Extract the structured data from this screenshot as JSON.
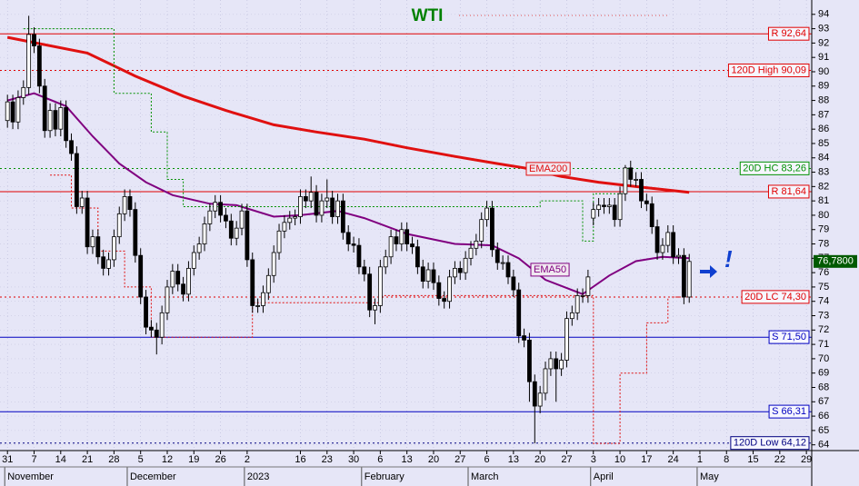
{
  "chart_data": {
    "type": "candlestick",
    "title": "WTI",
    "title_color": "#008000",
    "open": [
      86.6,
      87.9,
      86.5,
      88.2,
      88.9,
      92.6,
      91.8,
      89.0,
      85.9,
      87.3,
      86.0,
      87.5,
      85.2,
      84.3,
      80.6,
      81.2,
      77.8,
      78.5,
      77.1,
      76.3,
      76.9,
      78.5,
      80.1,
      81.3,
      80.4,
      77.2,
      74.3,
      72.2,
      72.0,
      71.5,
      73.2,
      75.0,
      76.1,
      75.2,
      74.5,
      76.3,
      77.4,
      78.0,
      79.4,
      80.3,
      80.9,
      80.0,
      79.6,
      78.4,
      79.1,
      80.3,
      76.9,
      73.7,
      73.7,
      74.6,
      75.8,
      77.4,
      78.9,
      79.5,
      79.8,
      79.9,
      81.3,
      81.0,
      81.6,
      80.0,
      81.0,
      81.2,
      79.9,
      81.0,
      78.8,
      78.0,
      77.9,
      76.4,
      75.9,
      73.4,
      73.7,
      76.4,
      77.1,
      78.5,
      78.0,
      79.0,
      78.0,
      77.8,
      76.4,
      75.4,
      76.2,
      75.3,
      74.2,
      74.0,
      75.7,
      76.3,
      76.0,
      77.0,
      77.7,
      78.2,
      79.7,
      80.5,
      77.6,
      76.7,
      76.7,
      75.7,
      74.8,
      71.6,
      71.3,
      68.4,
      66.7,
      67.6,
      69.3,
      70.0,
      69.3,
      69.9,
      72.8,
      73.2,
      74.4,
      74.4,
      79.8,
      80.4,
      80.7,
      80.6,
      80.7,
      79.7,
      81.5,
      83.3,
      82.5,
      82.5,
      81.0,
      80.8,
      79.2,
      77.4,
      77.9,
      78.8,
      77.1,
      77.2,
      74.3
    ],
    "high": [
      88.4,
      88.4,
      88.7,
      89.4,
      93.9,
      93.1,
      92.3,
      89.5,
      87.8,
      87.8,
      88.0,
      88.0,
      85.7,
      84.8,
      81.7,
      81.7,
      79.0,
      79.0,
      77.6,
      77.4,
      79.0,
      80.6,
      81.8,
      81.8,
      80.9,
      77.7,
      74.8,
      72.7,
      72.5,
      73.7,
      75.5,
      76.6,
      76.6,
      75.7,
      76.8,
      77.9,
      78.5,
      79.9,
      80.8,
      81.4,
      81.4,
      80.5,
      80.1,
      79.6,
      80.8,
      80.8,
      77.4,
      74.2,
      75.1,
      76.3,
      77.9,
      79.4,
      80.0,
      80.3,
      80.4,
      81.8,
      81.8,
      82.7,
      82.1,
      81.5,
      82.5,
      81.7,
      81.5,
      81.5,
      79.3,
      78.5,
      78.4,
      76.9,
      76.4,
      74.2,
      76.9,
      77.6,
      79.0,
      79.0,
      79.5,
      79.5,
      78.5,
      78.3,
      76.9,
      76.7,
      76.7,
      75.8,
      74.7,
      76.2,
      76.8,
      76.8,
      77.5,
      78.2,
      78.7,
      80.2,
      81.0,
      81.0,
      78.1,
      77.2,
      77.2,
      76.2,
      75.3,
      72.1,
      71.8,
      68.9,
      68.1,
      69.8,
      70.5,
      70.5,
      70.4,
      73.3,
      73.7,
      74.9,
      74.9,
      76.2,
      80.9,
      81.2,
      81.2,
      81.2,
      81.2,
      82.0,
      83.5,
      83.8,
      83.0,
      83.0,
      81.5,
      81.3,
      79.7,
      78.4,
      79.3,
      79.3,
      77.7,
      77.7,
      77.3
    ],
    "low": [
      86.1,
      86.0,
      86.0,
      87.7,
      88.4,
      91.3,
      88.5,
      85.4,
      85.4,
      85.5,
      85.5,
      84.7,
      83.8,
      80.1,
      80.1,
      77.3,
      77.3,
      76.6,
      75.8,
      75.8,
      76.4,
      78.0,
      79.6,
      79.9,
      76.7,
      73.8,
      71.7,
      71.5,
      70.3,
      71.0,
      72.7,
      74.5,
      74.7,
      74.0,
      74.0,
      75.8,
      76.9,
      77.5,
      78.9,
      79.8,
      79.5,
      79.1,
      77.9,
      77.9,
      78.6,
      76.4,
      73.2,
      73.2,
      73.2,
      74.1,
      75.3,
      76.9,
      78.4,
      79.0,
      79.3,
      79.4,
      80.5,
      80.5,
      79.5,
      79.5,
      80.5,
      79.4,
      79.4,
      78.3,
      77.5,
      77.4,
      75.9,
      75.4,
      72.9,
      72.4,
      73.2,
      75.9,
      76.6,
      77.5,
      77.5,
      77.5,
      77.3,
      75.9,
      74.9,
      74.9,
      74.8,
      73.7,
      73.5,
      73.5,
      75.2,
      75.5,
      75.5,
      76.5,
      77.2,
      77.7,
      79.2,
      77.1,
      76.2,
      76.2,
      75.2,
      74.3,
      71.1,
      70.8,
      67.0,
      64.1,
      66.2,
      67.1,
      68.8,
      67.0,
      68.8,
      69.4,
      72.3,
      72.7,
      73.9,
      73.9,
      79.3,
      79.9,
      80.1,
      80.1,
      79.2,
      79.2,
      81.0,
      82.0,
      82.0,
      80.5,
      80.3,
      78.7,
      76.9,
      76.9,
      77.4,
      76.6,
      76.6,
      73.8,
      73.9
    ],
    "close": [
      87.9,
      86.5,
      88.2,
      88.9,
      92.6,
      91.8,
      89.0,
      85.9,
      87.3,
      86.0,
      87.5,
      85.2,
      84.3,
      80.6,
      81.2,
      77.8,
      78.5,
      77.1,
      76.3,
      76.9,
      78.5,
      80.1,
      81.3,
      80.4,
      77.2,
      74.3,
      72.2,
      72.0,
      71.5,
      73.2,
      75.0,
      76.1,
      75.2,
      74.5,
      76.3,
      77.4,
      78.0,
      79.4,
      80.3,
      80.9,
      80.0,
      79.6,
      78.4,
      79.1,
      80.3,
      76.9,
      73.7,
      73.7,
      74.6,
      75.8,
      77.4,
      78.9,
      79.5,
      79.8,
      79.9,
      81.3,
      81.0,
      81.6,
      80.0,
      81.0,
      81.2,
      79.9,
      81.0,
      78.8,
      78.0,
      77.9,
      76.4,
      75.9,
      73.4,
      73.7,
      76.4,
      77.1,
      78.5,
      78.0,
      79.0,
      78.0,
      77.8,
      76.4,
      75.4,
      76.2,
      75.3,
      74.2,
      74.0,
      75.7,
      76.3,
      76.0,
      77.0,
      77.7,
      78.2,
      79.7,
      80.5,
      77.6,
      76.7,
      76.7,
      75.7,
      74.8,
      71.6,
      71.3,
      68.4,
      66.7,
      67.6,
      69.3,
      70.0,
      69.3,
      69.9,
      72.8,
      73.2,
      74.4,
      74.4,
      75.7,
      80.4,
      80.7,
      80.6,
      80.7,
      79.7,
      81.5,
      83.3,
      82.5,
      82.5,
      81.0,
      80.8,
      79.2,
      77.4,
      77.9,
      78.8,
      77.1,
      77.2,
      74.3,
      76.78
    ],
    "up_color": "#ffffff",
    "down_color": "#000000",
    "xlim": [
      -1.4,
      151
    ],
    "xticks": [
      {
        "value": 0,
        "label": "31"
      },
      {
        "value": 5,
        "label": "7"
      },
      {
        "value": 10,
        "label": "14"
      },
      {
        "value": 15,
        "label": "21"
      },
      {
        "value": 20,
        "label": "28"
      },
      {
        "value": 25,
        "label": "5"
      },
      {
        "value": 30,
        "label": "12"
      },
      {
        "value": 35,
        "label": "19"
      },
      {
        "value": 40,
        "label": "26"
      },
      {
        "value": 45,
        "label": "2"
      },
      {
        "value": 55,
        "label": "16"
      },
      {
        "value": 60,
        "label": "23"
      },
      {
        "value": 65,
        "label": "30"
      },
      {
        "value": 70,
        "label": "6"
      },
      {
        "value": 75,
        "label": "13"
      },
      {
        "value": 80,
        "label": "20"
      },
      {
        "value": 85,
        "label": "27"
      },
      {
        "value": 90,
        "label": "6"
      },
      {
        "value": 95,
        "label": "13"
      },
      {
        "value": 100,
        "label": "20"
      },
      {
        "value": 105,
        "label": "27"
      },
      {
        "value": 110,
        "label": "3"
      },
      {
        "value": 115,
        "label": "10"
      },
      {
        "value": 120,
        "label": "17"
      },
      {
        "value": 125,
        "label": "24"
      },
      {
        "value": 130,
        "label": "1"
      },
      {
        "value": 135,
        "label": "8"
      },
      {
        "value": 140,
        "label": "15"
      },
      {
        "value": 145,
        "label": "22"
      },
      {
        "value": 150,
        "label": "29"
      }
    ],
    "month_ticks": [
      {
        "value": 0,
        "label": "November"
      },
      {
        "value": 23,
        "label": "December"
      },
      {
        "value": 45,
        "label": "2023"
      },
      {
        "value": 67,
        "label": "February"
      },
      {
        "value": 87,
        "label": "March"
      },
      {
        "value": 110,
        "label": "April"
      },
      {
        "value": 130,
        "label": "May"
      }
    ],
    "ylim": [
      63.6,
      95
    ],
    "yticks": [
      64,
      65,
      66,
      67,
      68,
      69,
      70,
      71,
      72,
      73,
      74,
      75,
      76,
      77,
      78,
      79,
      80,
      81,
      82,
      83,
      84,
      85,
      86,
      87,
      88,
      89,
      90,
      91,
      92,
      93,
      94
    ],
    "grid": true,
    "series": [
      {
        "name": "EMA200",
        "color": "#e01010",
        "style": "solid",
        "x": [
          0,
          15,
          24,
          33,
          41,
          50,
          58,
          67,
          75,
          84,
          92,
          97,
          104,
          111,
          118,
          128
        ],
        "values": [
          92.4,
          91.3,
          89.7,
          88.3,
          87.3,
          86.3,
          85.8,
          85.3,
          84.7,
          84.1,
          83.6,
          83.3,
          82.7,
          82.3,
          82.0,
          81.6
        ]
      },
      {
        "name": "EMA50",
        "color": "#800080",
        "style": "solid",
        "x": [
          0,
          5,
          11,
          16,
          21,
          26,
          31,
          38,
          43,
          50,
          55,
          62,
          67,
          75,
          84,
          91,
          96,
          101,
          108,
          113,
          118,
          123,
          128
        ],
        "values": [
          88.0,
          88.5,
          87.6,
          85.5,
          83.6,
          82.3,
          81.4,
          80.8,
          80.7,
          79.9,
          80.0,
          80.3,
          79.8,
          78.7,
          78.0,
          77.9,
          77.0,
          75.5,
          74.5,
          75.8,
          76.8,
          77.1,
          77.0
        ]
      },
      {
        "color": "#009000",
        "style": "dotted",
        "x": [
          3,
          20,
          20,
          27,
          27,
          30,
          30,
          33,
          33,
          100,
          100,
          108,
          108,
          110,
          110,
          116
        ],
        "values": [
          93.0,
          93.0,
          88.5,
          88.5,
          85.8,
          85.8,
          82.5,
          82.5,
          80.6,
          80.6,
          81.0,
          81.0,
          78.2,
          78.2,
          81.5,
          81.5
        ]
      },
      {
        "color": "#e01010",
        "style": "dotted",
        "x": [
          8,
          12,
          12,
          17,
          17,
          22,
          22,
          27,
          27,
          46,
          46,
          70,
          70,
          110,
          110,
          115,
          115,
          120,
          120,
          124,
          124,
          128
        ],
        "values": [
          82.8,
          82.8,
          80.5,
          80.5,
          77.5,
          77.5,
          75.0,
          75.0,
          71.5,
          71.5,
          73.9,
          73.9,
          74.4,
          74.4,
          64.1,
          64.1,
          69.0,
          69.0,
          72.5,
          72.5,
          74.3,
          74.3
        ]
      }
    ],
    "levels": [
      {
        "label": "R 92,64",
        "value": 92.64,
        "color": "#e00000",
        "style": "solid"
      },
      {
        "label": "120D High 90,09",
        "value": 90.09,
        "color": "#e00000",
        "style": "dotted"
      },
      {
        "label": "20D HC 83,26",
        "value": 83.26,
        "color": "#009000",
        "style": "dotted"
      },
      {
        "label": "R 81,64",
        "value": 81.64,
        "color": "#e00000",
        "style": "solid"
      },
      {
        "label": "20D LC 74,30",
        "value": 74.3,
        "color": "#e00000",
        "style": "dotted"
      },
      {
        "label": "S 71,50",
        "value": 71.5,
        "color": "#0000c0",
        "style": "solid"
      },
      {
        "label": "S 66,31",
        "value": 66.31,
        "color": "#0000c0",
        "style": "solid"
      },
      {
        "label": "120D Low 64,12",
        "value": 64.12,
        "color": "#000080",
        "style": "dotted"
      }
    ],
    "last_price": {
      "value": 76.78,
      "label": "76,7800",
      "color": "#005a00"
    },
    "note": "!"
  }
}
